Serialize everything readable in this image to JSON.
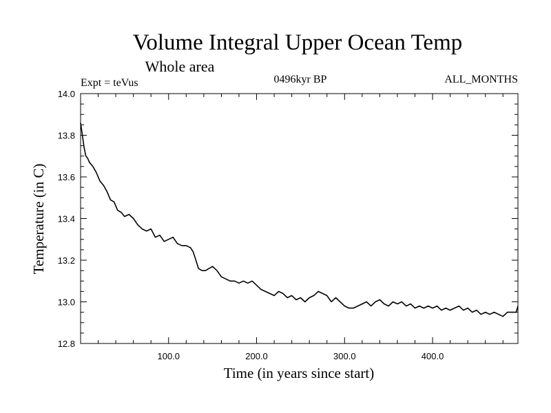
{
  "header": {
    "title": "Volume Integral Upper Ocean Temp",
    "subtitle": "Whole area",
    "expt": "Expt = teVus",
    "period": "0496kyr BP",
    "months": "ALL_MONTHS"
  },
  "chart_data": {
    "type": "line",
    "title": "Volume Integral Upper Ocean Temp",
    "subtitle": "Whole area",
    "xlabel": "Time (in years since start)",
    "ylabel": "Temperature (in C)",
    "xlim": [
      0,
      497
    ],
    "ylim": [
      12.8,
      14.0
    ],
    "x_ticks": [
      100,
      200,
      300,
      400
    ],
    "x_tick_labels": [
      "100.0",
      "200.0",
      "300.0",
      "400.0"
    ],
    "y_ticks": [
      12.8,
      13.0,
      13.2,
      13.4,
      13.6,
      13.8,
      14.0
    ],
    "y_tick_labels": [
      "12.8",
      "13.0",
      "13.2",
      "13.4",
      "13.6",
      "13.8",
      "14.0"
    ],
    "grid": false,
    "series": [
      {
        "x": [
          0,
          2,
          4,
          6,
          8,
          10,
          14,
          18,
          22,
          26,
          30,
          34,
          38,
          42,
          46,
          50,
          55,
          60,
          65,
          70,
          75,
          80,
          85,
          90,
          95,
          100,
          105,
          110,
          115,
          120,
          125,
          128,
          131,
          134,
          138,
          142,
          146,
          150,
          155,
          160,
          165,
          170,
          175,
          180,
          185,
          190,
          195,
          200,
          205,
          210,
          215,
          220,
          225,
          230,
          235,
          240,
          245,
          250,
          255,
          260,
          265,
          270,
          275,
          280,
          285,
          290,
          295,
          300,
          305,
          310,
          315,
          320,
          325,
          330,
          335,
          340,
          345,
          350,
          355,
          360,
          365,
          370,
          375,
          380,
          385,
          390,
          395,
          400,
          405,
          410,
          415,
          420,
          425,
          430,
          435,
          440,
          445,
          450,
          455,
          460,
          465,
          470,
          475,
          480,
          485,
          490,
          495,
          497
        ],
        "y": [
          13.86,
          13.8,
          13.74,
          13.7,
          13.69,
          13.67,
          13.65,
          13.62,
          13.58,
          13.56,
          13.53,
          13.49,
          13.48,
          13.44,
          13.43,
          13.41,
          13.42,
          13.4,
          13.37,
          13.35,
          13.34,
          13.35,
          13.31,
          13.32,
          13.29,
          13.3,
          13.31,
          13.28,
          13.27,
          13.27,
          13.26,
          13.24,
          13.2,
          13.16,
          13.15,
          13.15,
          13.16,
          13.17,
          13.15,
          13.12,
          13.11,
          13.1,
          13.1,
          13.09,
          13.1,
          13.09,
          13.1,
          13.08,
          13.06,
          13.05,
          13.04,
          13.03,
          13.05,
          13.04,
          13.02,
          13.03,
          13.01,
          13.02,
          13.0,
          13.02,
          13.03,
          13.05,
          13.04,
          13.03,
          13.0,
          13.02,
          13.0,
          12.98,
          12.97,
          12.97,
          12.98,
          12.99,
          13.0,
          12.98,
          13.0,
          13.01,
          12.99,
          12.98,
          13.0,
          12.99,
          13.0,
          12.98,
          12.99,
          12.97,
          12.98,
          12.97,
          12.98,
          12.97,
          12.98,
          12.96,
          12.97,
          12.96,
          12.97,
          12.98,
          12.96,
          12.97,
          12.95,
          12.96,
          12.94,
          12.95,
          12.94,
          12.95,
          12.94,
          12.93,
          12.95,
          12.95,
          12.95,
          12.98
        ]
      }
    ]
  }
}
